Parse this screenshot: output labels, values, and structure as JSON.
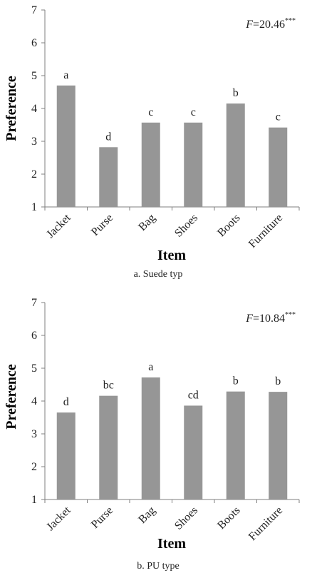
{
  "chart_data": [
    {
      "type": "bar",
      "categories": [
        "Jacket",
        "Purse",
        "Bag",
        "Shoes",
        "Boots",
        "Furniture"
      ],
      "values": [
        4.7,
        2.82,
        3.57,
        3.57,
        4.15,
        3.42
      ],
      "significance_labels": [
        "a",
        "d",
        "c",
        "c",
        "b",
        "c"
      ],
      "ylim": [
        1,
        7
      ],
      "yticks": [
        "1",
        "2",
        "3",
        "4",
        "5",
        "6",
        "7"
      ],
      "xlabel": "Item",
      "ylabel": "Preference",
      "stat_prefix": "F",
      "stat_value": "=20.46",
      "stat_stars": "***",
      "caption": "a. Suede typ",
      "bar_color": "#969696",
      "grid": false
    },
    {
      "type": "bar",
      "categories": [
        "Jacket",
        "Purse",
        "Bag",
        "Shoes",
        "Boots",
        "Furniture"
      ],
      "values": [
        3.65,
        4.16,
        4.72,
        3.86,
        4.29,
        4.28
      ],
      "significance_labels": [
        "d",
        "bc",
        "a",
        "cd",
        "b",
        "b"
      ],
      "ylim": [
        1,
        7
      ],
      "yticks": [
        "1",
        "2",
        "3",
        "4",
        "5",
        "6",
        "7"
      ],
      "xlabel": "Item",
      "ylabel": "Preference",
      "stat_prefix": "F",
      "stat_value": "=10.84",
      "stat_stars": "***",
      "caption": "b. PU type",
      "bar_color": "#969696",
      "grid": false
    }
  ]
}
